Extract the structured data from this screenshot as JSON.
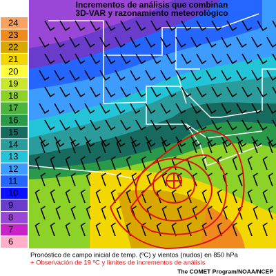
{
  "header": {
    "title_lines": [
      "Incrementos de análisis que combinan",
      "3D-VAR y razonamiento meteorológico"
    ]
  },
  "legend": {
    "labels": [
      24,
      23,
      22,
      21,
      20,
      19,
      18,
      17,
      16,
      15,
      14,
      13,
      12,
      11,
      10,
      9,
      8,
      7,
      6
    ],
    "colors": [
      "#f6a263",
      "#ee8a1e",
      "#d8a800",
      "#f2d800",
      "#ffff3c",
      "#c8e62a",
      "#8cd228",
      "#4cb43c",
      "#2a9a4a",
      "#176a5e",
      "#2a9c9c",
      "#24c4d8",
      "#3c9cff",
      "#2466ff",
      "#0a10ff",
      "#6a3ccc",
      "#9a46d6",
      "#c822c8",
      "#ffb0c8"
    ]
  },
  "caption": {
    "line1": "Pronóstico de campo inicial de temp. (ºC) y vientos (nudos) en 850 hPa",
    "line2": "+ Observación de 19 ºC y límites de incrementos de análisis"
  },
  "credit": "The COMET Program/NOAA/NCEP"
}
